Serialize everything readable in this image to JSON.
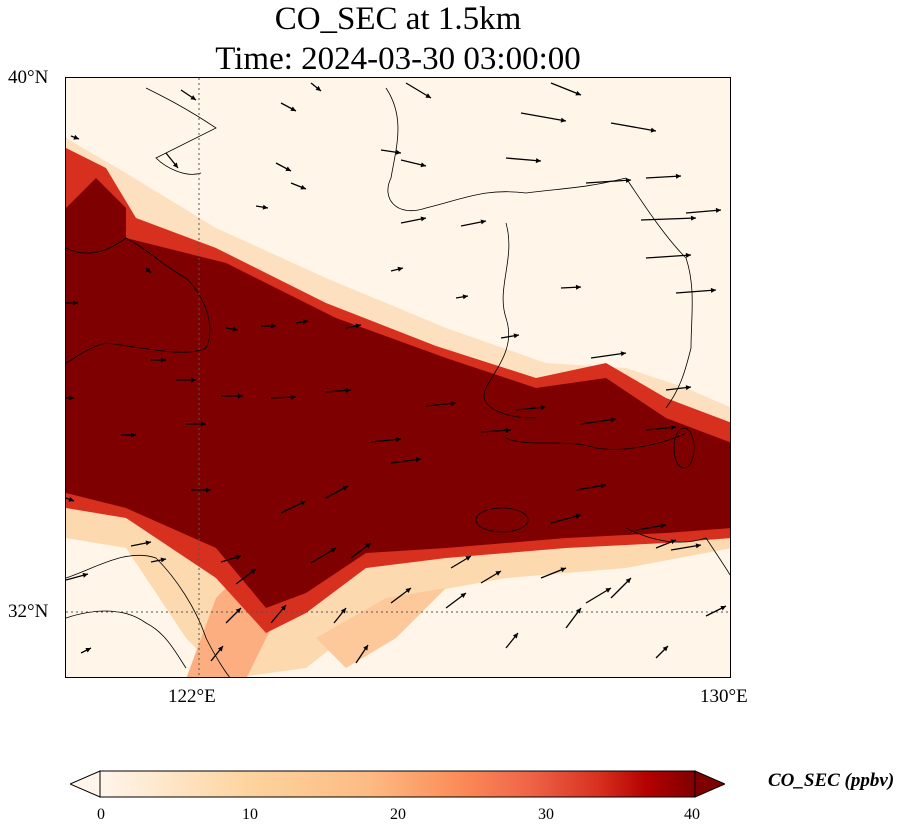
{
  "title_line1": "CO_SEC at 1.5km",
  "title_line2": "Time: 2024-03-30 03:00:00",
  "lat_labels": [
    "40°N",
    "32°N"
  ],
  "lon_labels": [
    "122°E",
    "130°E"
  ],
  "colorbar": {
    "label": "CO_SEC (ppbv)",
    "ticks": [
      "0",
      "10",
      "20",
      "30",
      "40"
    ],
    "min": 0,
    "max": 40,
    "colors": [
      "#fff5eb",
      "#fdd49e",
      "#fdbb84",
      "#fc8d59",
      "#ef6548",
      "#d7301f",
      "#b30000",
      "#7f0000"
    ]
  },
  "map_extent": {
    "lon_min": 120,
    "lon_max": 130,
    "lat_min": 31,
    "lat_max": 40
  },
  "concentration_band_color": "#7f0000"
}
